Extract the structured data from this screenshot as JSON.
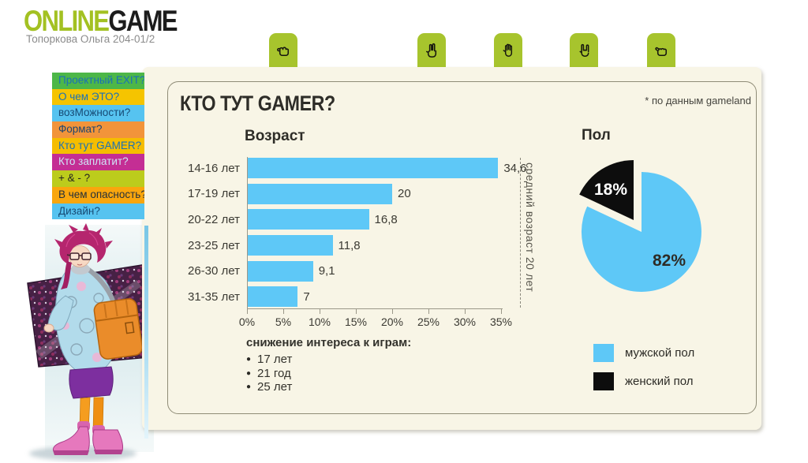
{
  "logo": {
    "part1": "ONLINE",
    "part2": "GAME",
    "subtitle": "Топоркова Ольга 204-01/2",
    "accent_color": "#a3c122"
  },
  "tabs": [
    {
      "icon": "fist-hand"
    },
    {
      "icon": "victory-hand"
    },
    {
      "icon": "palm-hand"
    },
    {
      "icon": "rock-hand"
    },
    {
      "icon": "thumb-fist-hand"
    }
  ],
  "sidebar": {
    "items": [
      {
        "label": "Проектный EXIT?",
        "bg": "#4db748",
        "fg": "#1a70b8"
      },
      {
        "label": "О чем ЭТО?",
        "bg": "#f5c400",
        "fg": "#1a70b8"
      },
      {
        "label": "возМожности?",
        "bg": "#56c3f0",
        "fg": "#174a74"
      },
      {
        "label": "Формат?",
        "bg": "#f2943a",
        "fg": "#1d4570"
      },
      {
        "label": "Кто тут GAMER?",
        "bg": "#f5bd00",
        "fg": "#1a70b8"
      },
      {
        "label": "Кто заплатит?",
        "bg": "#c42e94",
        "fg": "#cfe6f7"
      },
      {
        "label": "+ & - ?",
        "bg": "#bccc1c",
        "fg": "#26241f"
      },
      {
        "label": "В чем опасность?",
        "bg": "#f9a60d",
        "fg": "#26303a"
      },
      {
        "label": "Дизайн?",
        "bg": "#56c3f0",
        "fg": "#174a74"
      }
    ]
  },
  "panel": {
    "title": "КТО ТУТ GAMER?",
    "source_note": "* по данным gameland"
  },
  "chart_data": [
    {
      "type": "bar",
      "orientation": "horizontal",
      "title": "Возраст",
      "categories": [
        "14-16 лет",
        "17-19 лет",
        "20-22 лет",
        "23-25 лет",
        "26-30 лет",
        "31-35 лет"
      ],
      "values": [
        34.6,
        20,
        16.8,
        11.8,
        9.1,
        7
      ],
      "value_labels": [
        "34,6",
        "20",
        "16,8",
        "11,8",
        "9,1",
        "7"
      ],
      "x_ticks": [
        "0%",
        "5%",
        "10%",
        "15%",
        "20%",
        "25%",
        "30%",
        "35%"
      ],
      "xlim": [
        0,
        35
      ],
      "bar_color": "#5ec8f7",
      "grid": false,
      "annotation": "средний возраст 20 лет"
    },
    {
      "type": "pie",
      "title": "Пол",
      "slices": [
        {
          "label": "мужской пол",
          "value": 82,
          "display": "82%",
          "color": "#5ec8f7",
          "exploded": false,
          "label_color": "#2d2c27"
        },
        {
          "label": "женский пол",
          "value": 18,
          "display": "18%",
          "color": "#0d0d0d",
          "exploded": true,
          "label_color": "#ffffff"
        }
      ],
      "legend_position": "bottom-right"
    }
  ],
  "notes": {
    "heading": "снижение интереса к играм:",
    "items": [
      "17 лет",
      "21 год",
      "25 лет"
    ]
  }
}
